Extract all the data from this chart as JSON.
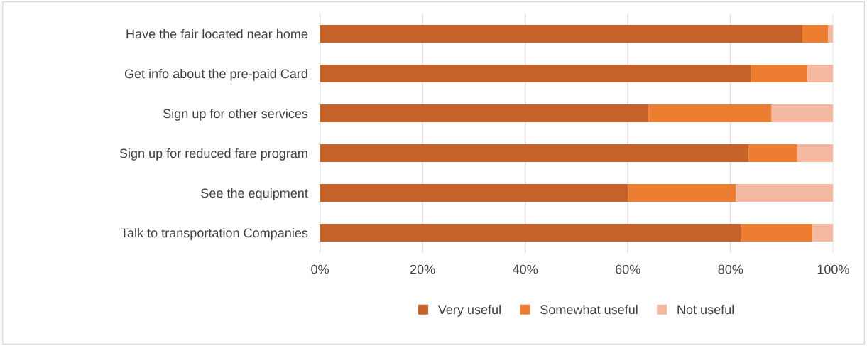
{
  "chart_data": {
    "type": "bar",
    "orientation": "horizontal",
    "stacked": true,
    "categories": [
      "Have the fair located near home",
      "Get info about the pre-paid Card",
      "Sign up for other services",
      "Sign up for reduced fare program",
      "See the equipment",
      "Talk to transportation Companies"
    ],
    "series": [
      {
        "name": "Very useful",
        "color": "#c5622a",
        "values": [
          94,
          84,
          64,
          83.5,
          60,
          82
        ]
      },
      {
        "name": "Somewhat useful",
        "color": "#ed7d31",
        "values": [
          5,
          11,
          24,
          9.5,
          21,
          14
        ]
      },
      {
        "name": "Not useful",
        "color": "#f4b9a0",
        "values": [
          1,
          5,
          12,
          7,
          19,
          4
        ]
      }
    ],
    "xlim": [
      0,
      100
    ],
    "xticks": [
      {
        "value": 0,
        "label": "0%"
      },
      {
        "value": 20,
        "label": "20%"
      },
      {
        "value": 40,
        "label": "40%"
      },
      {
        "value": 60,
        "label": "60%"
      },
      {
        "value": 80,
        "label": "80%"
      },
      {
        "value": 100,
        "label": "100%"
      }
    ],
    "grid": "x",
    "legend": "bottom"
  }
}
